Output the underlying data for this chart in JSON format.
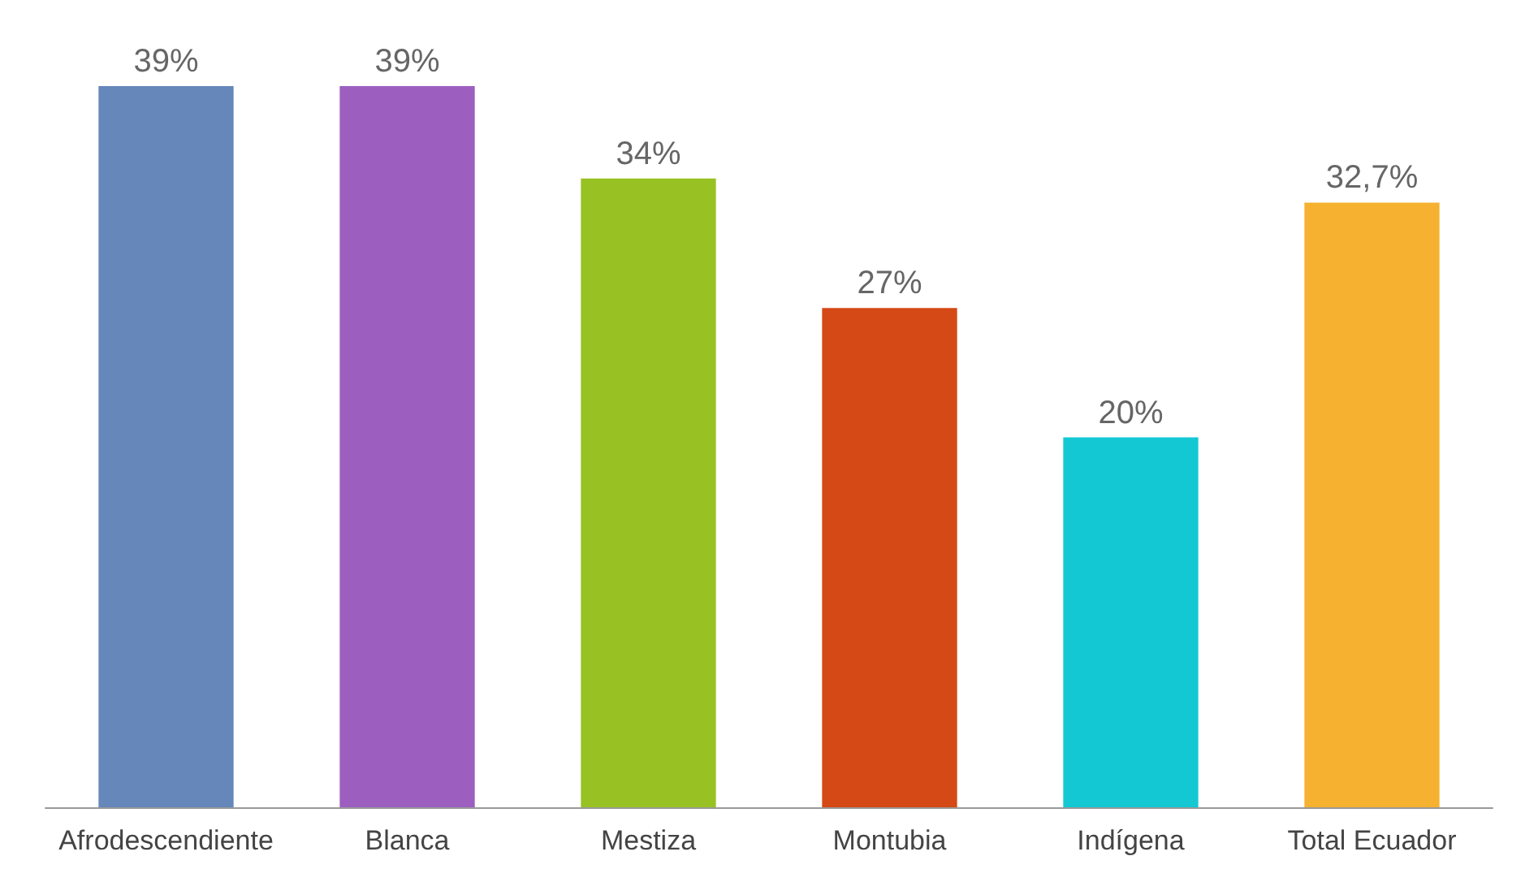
{
  "chart_data": {
    "type": "bar",
    "categories": [
      "Afrodescendiente",
      "Blanca",
      "Mestiza",
      "Montubia",
      "Indígena",
      "Total Ecuador"
    ],
    "values": [
      39,
      39,
      34,
      27,
      20,
      32.7
    ],
    "value_labels": [
      "39%",
      "39%",
      "34%",
      "27%",
      "20%",
      "32,7%"
    ],
    "colors": [
      "#6587ba",
      "#9d5fbf",
      "#98c223",
      "#d44916",
      "#14c8d3",
      "#f6b130"
    ]
  }
}
